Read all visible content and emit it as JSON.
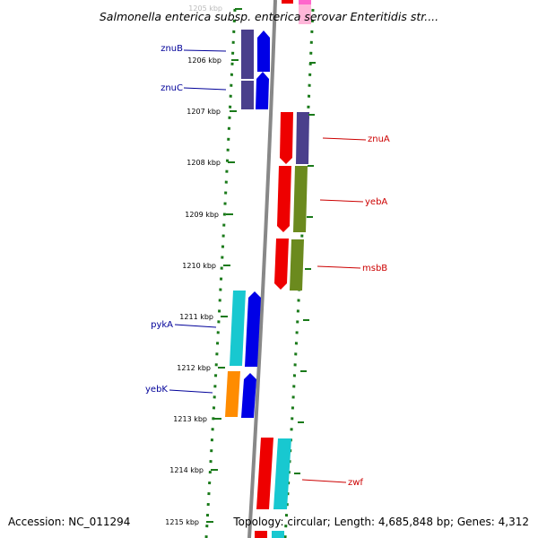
{
  "title": "Salmonella enterica subsp. enterica serovar Enteritidis str....",
  "footer": {
    "accession": "Accession: NC_011294",
    "topology": "Topology: circular; Length: 4,685,848 bp; Genes: 4,312"
  },
  "axis": {
    "unit": "kbp",
    "range_kbp": [
      1205,
      1215
    ],
    "ticks": [
      "1205 kbp",
      "1206 kbp",
      "1207 kbp",
      "1208 kbp",
      "1209 kbp",
      "1210 kbp",
      "1211 kbp",
      "1212 kbp",
      "1213 kbp",
      "1214 kbp",
      "1215 kbp"
    ]
  },
  "colors": {
    "forward_label": "#000099",
    "reverse_label": "#cc0000",
    "backbone": "#888888",
    "dotted_ring": "#1a7a1a",
    "cog_purple": "#4a3f8c",
    "cog_blue": "#0000e6",
    "cog_red": "#ee0000",
    "cog_olive": "#6b8a1e",
    "cog_cyan": "#18c8d0",
    "cog_orange": "#ff8c00",
    "cog_pink": "#ff66cc"
  },
  "genes": [
    {
      "name": "znuB",
      "strand": "forward",
      "start_kbp": 1205.45,
      "end_kbp": 1206.25
    },
    {
      "name": "znuC",
      "strand": "forward",
      "start_kbp": 1206.25,
      "end_kbp": 1207.0
    },
    {
      "name": "znuA",
      "strand": "reverse",
      "start_kbp": 1207.0,
      "end_kbp": 1208.0
    },
    {
      "name": "yebA",
      "strand": "reverse",
      "start_kbp": 1208.0,
      "end_kbp": 1209.35
    },
    {
      "name": "msbB",
      "strand": "reverse",
      "start_kbp": 1209.45,
      "end_kbp": 1210.45
    },
    {
      "name": "pykA",
      "strand": "forward",
      "start_kbp": 1210.75,
      "end_kbp": 1212.2
    },
    {
      "name": "yebK",
      "strand": "forward",
      "start_kbp": 1212.3,
      "end_kbp": 1213.2
    },
    {
      "name": "zwf",
      "strand": "reverse",
      "start_kbp": 1213.6,
      "end_kbp": 1215.0
    }
  ]
}
